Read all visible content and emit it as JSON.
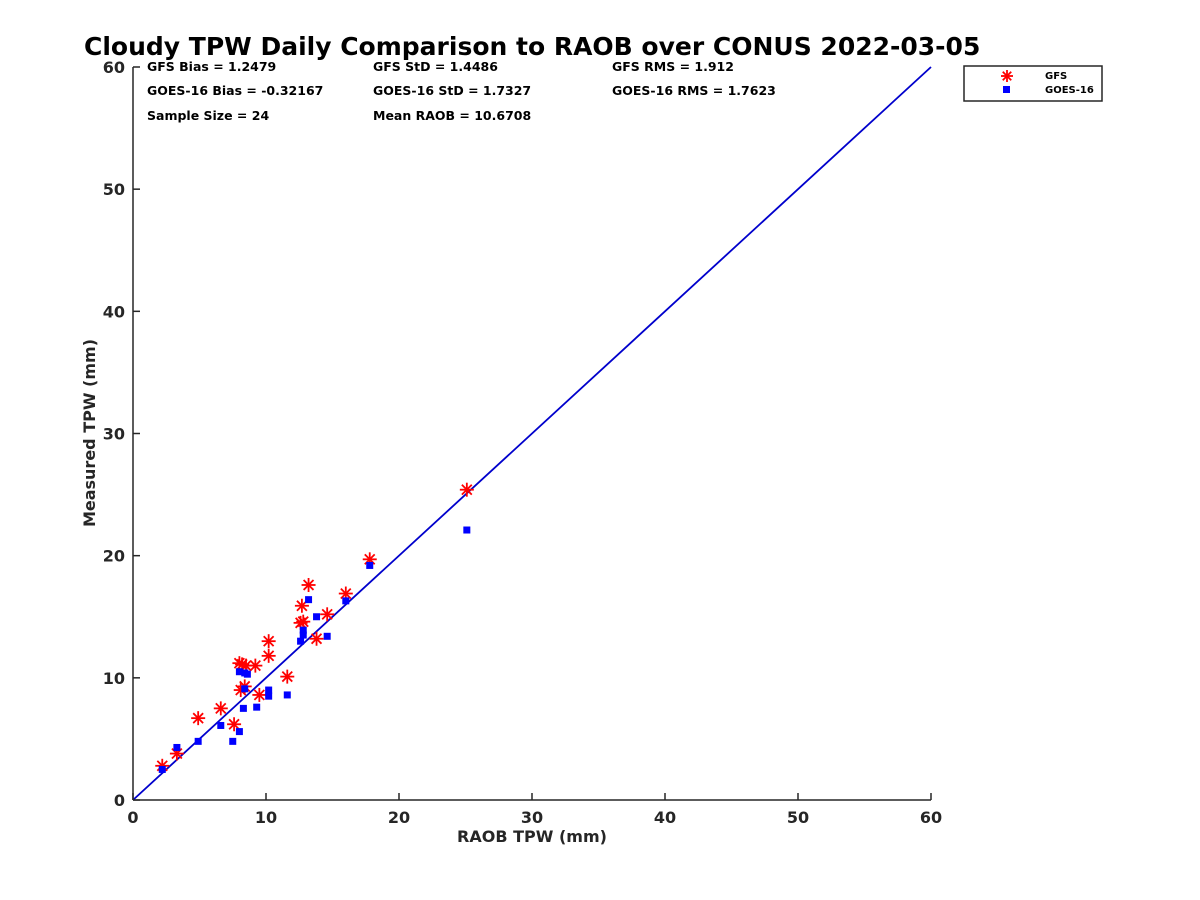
{
  "chart_data": {
    "type": "scatter",
    "title": "Cloudy TPW Daily Comparison to RAOB over CONUS 2022-03-05",
    "xlabel": "RAOB TPW (mm)",
    "ylabel": "Measured TPW (mm)",
    "xlim": [
      0,
      60
    ],
    "ylim": [
      0,
      60
    ],
    "x_ticks": [
      "0",
      "10",
      "20",
      "30",
      "40",
      "50",
      "60"
    ],
    "y_ticks": [
      "0",
      "10",
      "20",
      "30",
      "40",
      "50",
      "60"
    ],
    "grid": false,
    "legend_position": "top-right",
    "reference_line": {
      "x": [
        0,
        60
      ],
      "y": [
        0,
        60
      ],
      "color": "#0000cc"
    },
    "stats": {
      "gfs_bias": "GFS Bias = 1.2479",
      "gfs_std": "GFS StD = 1.4486",
      "gfs_rms": "GFS RMS = 1.912",
      "goes_bias": "GOES-16 Bias = -0.32167",
      "goes_std": "GOES-16 StD = 1.7327",
      "goes_rms": "GOES-16 RMS = 1.7623",
      "sample_size": "Sample Size = 24",
      "mean_raob": "Mean RAOB = 10.6708"
    },
    "series": [
      {
        "name": "GFS",
        "marker": "asterisk",
        "color": "#ff0000",
        "x": [
          2.2,
          3.3,
          4.9,
          6.6,
          7.6,
          8.1,
          8.2,
          8.4,
          8.5,
          9.2,
          9.5,
          10.2,
          10.2,
          11.6,
          12.6,
          12.7,
          12.8,
          13.2,
          13.8,
          14.6,
          16.0,
          17.8,
          25.1,
          8.0
        ],
        "y": [
          2.8,
          3.8,
          6.7,
          7.5,
          6.2,
          9.0,
          11.1,
          9.3,
          11.0,
          11.0,
          8.6,
          13.0,
          11.8,
          10.1,
          14.5,
          15.9,
          14.6,
          17.6,
          13.2,
          15.2,
          16.9,
          19.7,
          25.4,
          11.2
        ]
      },
      {
        "name": "GOES-16",
        "marker": "square",
        "color": "#0000ff",
        "x": [
          2.2,
          3.3,
          4.9,
          6.6,
          7.5,
          8.0,
          8.0,
          8.3,
          8.4,
          8.6,
          9.3,
          10.2,
          10.2,
          11.6,
          12.6,
          12.8,
          12.8,
          13.2,
          13.8,
          14.6,
          16.0,
          17.8,
          25.1,
          8.4
        ],
        "y": [
          2.5,
          4.3,
          4.8,
          6.1,
          4.8,
          5.6,
          10.5,
          7.5,
          9.1,
          10.3,
          7.6,
          8.5,
          9.0,
          8.6,
          13.0,
          13.5,
          13.9,
          16.4,
          15.0,
          13.4,
          16.3,
          19.2,
          22.1,
          10.4
        ]
      }
    ]
  }
}
